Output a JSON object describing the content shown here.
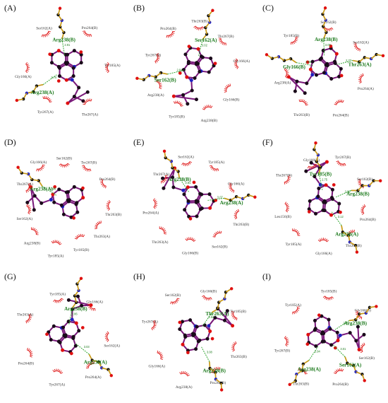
{
  "colors": {
    "ligand_bond": "#7a1a7a",
    "ligand_atom": "#1a0a1a",
    "protein_bond": "#c99a1a",
    "hydrophobic": "#e02020",
    "hbond": "#22a022",
    "oxygen": "#e01010",
    "nitrogen": "#2020c0",
    "carbon": "#111111"
  },
  "panels": [
    {
      "label": "(A)",
      "hbond_residues": [
        "Arg238(A)",
        "Arg238(B)"
      ],
      "hydrophobic": [
        "Tyr185(A)",
        "Thr267(A)",
        "Tyr267(A)",
        "Gly166(A)",
        "Ser162(A)",
        "Pro264(B)"
      ],
      "hbond_distances": [
        "2.70",
        "2.91",
        "3.15"
      ]
    },
    {
      "label": "(B)",
      "hbond_residues": [
        "Ser162(B)",
        "Ser162(A)"
      ],
      "hydrophobic": [
        "Gly166(B)",
        "Arg238(B)",
        "Tyr185(B)",
        "Arg238(A)",
        "Tyr267(B)",
        "Pro264(B)",
        "Thr263(B)",
        "Thr267(B)",
        "Gly166(A)"
      ],
      "hbond_distances": [
        "2.84",
        "3.02"
      ]
    },
    {
      "label": "(C)",
      "hbond_residues": [
        "Gly166(B)",
        "Arg238(B)",
        "Thr263(A)"
      ],
      "hydrophobic": [
        "Pro264(B)",
        "Thr263(B)",
        "Arg238(A)",
        "Tyr185(B)",
        "Ser162(B)",
        "Ser162(A)",
        "Pro264(A)"
      ],
      "hbond_distances": [
        "2.88",
        "3.05",
        "2.77"
      ]
    },
    {
      "label": "(D)",
      "hbond_residues": [
        "Arg238(A)"
      ],
      "hydrophobic": [
        "Tyr185(A)",
        "Arg238(B)",
        "Ser162(A)",
        "Thr267(A)",
        "Gly166(A)",
        "Ser162(B)",
        "Tyr267(B)",
        "Pro264(B)",
        "Thr263(B)",
        "Thr263(A)",
        "Tyr185(B)"
      ],
      "hbond_distances": [
        "2.96",
        "3.10"
      ]
    },
    {
      "label": "(E)",
      "hbond_residues": [
        "Arg238(B)",
        "Arg238(A)"
      ],
      "hydrophobic": [
        "Thr263(A)",
        "Pro264(A)",
        "Thr267(A)",
        "Ser162(A)",
        "Tyr185(A)",
        "Gly166(A)",
        "Thr263(B)",
        "Ser162(B)",
        "Gly166(B)"
      ],
      "hbond_distances": [
        "2.81",
        "3.07",
        "2.93"
      ]
    },
    {
      "label": "(F)",
      "hbond_residues": [
        "Tyr185(B)",
        "Arg238(B)",
        "Arg238(A)"
      ],
      "hydrophobic": [
        "Leu156(B)",
        "Thr267(B)",
        "Gly166(B)",
        "Tyr267(B)",
        "Ser162(B)",
        "Pro264(B)",
        "Thr263(B)",
        "Gly166(A)",
        "Tyr185(A)"
      ],
      "hbond_distances": [
        "2.75",
        "2.99",
        "3.12"
      ]
    },
    {
      "label": "(G)",
      "hbond_residues": [
        "Arg238(B)",
        "Arg238(A)"
      ],
      "hydrophobic": [
        "Thr263(A)",
        "Tyr185(A)",
        "Gly166(A)",
        "Ser162(A)",
        "Pro264(A)",
        "Tyr267(A)",
        "Pro264(B)"
      ],
      "hbond_distances": [
        "2.86",
        "3.03"
      ]
    },
    {
      "label": "(H)",
      "hbond_residues": [
        "Thr263(A)",
        "Arg238(B)"
      ],
      "hydrophobic": [
        "Ser162(B)",
        "Gly166(B)",
        "Tyr185(B)",
        "Thr263(B)",
        "Pro264(B)",
        "Arg238(A)",
        "Gly166(A)",
        "Tyr267(A)"
      ],
      "hbond_distances": [
        "2.92",
        "3.08"
      ]
    },
    {
      "label": "(I)",
      "hbond_residues": [
        "Arg238(B)",
        "Ser162(A)",
        "Arg238(A)"
      ],
      "hydrophobic": [
        "Tyr185(B)",
        "Gly166(B)",
        "Ser162(B)",
        "Pro264(B)",
        "Thr263(B)",
        "Tyr267(B)",
        "Tyr185(A)"
      ],
      "hbond_distances": [
        "2.79",
        "3.01",
        "2.94"
      ]
    }
  ]
}
